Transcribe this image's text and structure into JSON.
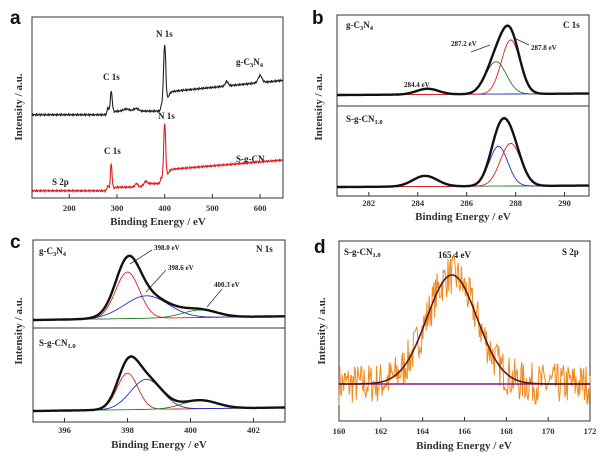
{
  "chart_data": [
    {
      "panel": "a",
      "type": "line",
      "xlabel": "Binding Energy / eV",
      "ylabel": "Intensity / a.u.",
      "xlim": [
        122,
        648
      ],
      "ylim": [
        0,
        100
      ],
      "xticks": [
        "200",
        "300",
        "400",
        "500",
        "600"
      ],
      "series": [
        {
          "name": "g-C3N4",
          "color": "#222222",
          "offset": 46,
          "steps": [
            {
              "x": 290,
              "h": 2
            },
            {
              "x": 405,
              "h": 11
            }
          ],
          "slope_after": {
            "x": 420,
            "h": 6
          },
          "peaks": [
            {
              "x": 281,
              "h": 4,
              "w": 1.5
            },
            {
              "x": 288,
              "h": 12,
              "w": 2.2
            },
            {
              "x": 320,
              "h": 1.2,
              "w": 6
            },
            {
              "x": 340,
              "h": 1.5,
              "w": 5
            },
            {
              "x": 394,
              "h": 3,
              "w": 2
            },
            {
              "x": 400,
              "h": 35,
              "w": 2.4
            },
            {
              "x": 530,
              "h": 2.5,
              "w": 3
            },
            {
              "x": 600,
              "h": 4,
              "w": 4
            }
          ]
        },
        {
          "name": "S-g-CN",
          "color": "#e02020",
          "offset": 4,
          "steps": [
            {
              "x": 290,
              "h": 2
            },
            {
              "x": 355,
              "h": 2
            },
            {
              "x": 405,
              "h": 8
            }
          ],
          "slope_after": {
            "x": 420,
            "h": 5
          },
          "peaks": [
            {
              "x": 281,
              "h": 3,
              "w": 1.5
            },
            {
              "x": 288,
              "h": 14,
              "w": 1.8
            },
            {
              "x": 341,
              "h": 2,
              "w": 3
            },
            {
              "x": 360,
              "h": 1.5,
              "w": 3
            },
            {
              "x": 393,
              "h": 3,
              "w": 1.8
            },
            {
              "x": 400,
              "h": 32,
              "w": 2.2
            }
          ]
        }
      ],
      "annotations": {
        "c1s_top": "C 1s",
        "n1s_top": "N 1s",
        "c1s_bottom": "C 1s",
        "n1s_bottom": "N 1s",
        "s2p": "S 2p",
        "red_label": "S-g-CN"
      },
      "sample_top": [
        "g-C",
        "3",
        "N",
        "4"
      ]
    },
    {
      "panel": "b",
      "type": "line",
      "region": "C 1s",
      "xlabel": "Binding Energy / eV",
      "ylabel": "Intensity / a.u.",
      "xlim": [
        280.7,
        291
      ],
      "xticks": [
        "282",
        "284",
        "286",
        "288",
        "290"
      ],
      "top": {
        "sample": [
          "g-C",
          "3",
          "N",
          "4"
        ],
        "components": [
          {
            "x": 284.4,
            "h": 0.08,
            "w": 0.45,
            "color": "#2030c0"
          },
          {
            "x": 287.2,
            "h": 0.45,
            "w": 0.42,
            "color": "#208020"
          },
          {
            "x": 287.8,
            "h": 0.75,
            "w": 0.38,
            "color": "#e02020"
          }
        ],
        "labels": [
          "284.4 eV",
          "287.2 eV",
          "287.8 eV"
        ]
      },
      "bottom": {
        "sample": [
          "S-g-CN",
          "1.0"
        ],
        "components": [
          {
            "x": 284.3,
            "h": 0.15,
            "w": 0.5,
            "color": "#208020"
          },
          {
            "x": 287.3,
            "h": 0.56,
            "w": 0.38,
            "color": "#2030c0"
          },
          {
            "x": 287.8,
            "h": 0.6,
            "w": 0.42,
            "color": "#e02020"
          }
        ]
      }
    },
    {
      "panel": "c",
      "type": "line",
      "region": "N 1s",
      "xlabel": "Binding Energy / eV",
      "ylabel": "Intensity / a.u.",
      "xlim": [
        395,
        403
      ],
      "xticks": [
        "396",
        "398",
        "400",
        "402"
      ],
      "top": {
        "sample": [
          "g-C",
          "3",
          "N",
          "4"
        ],
        "components": [
          {
            "x": 398.0,
            "h": 0.62,
            "w": 0.38,
            "color": "#e02020"
          },
          {
            "x": 398.6,
            "h": 0.3,
            "w": 0.7,
            "color": "#2030c0"
          },
          {
            "x": 400.3,
            "h": 0.1,
            "w": 0.55,
            "color": "#208020"
          }
        ],
        "labels": [
          "398.0 eV",
          "398.6 eV",
          "400.3 eV"
        ]
      },
      "bottom": {
        "sample": [
          "S-g-CN",
          "1.0"
        ],
        "components": [
          {
            "x": 398.0,
            "h": 0.52,
            "w": 0.33,
            "color": "#e02020"
          },
          {
            "x": 398.6,
            "h": 0.43,
            "w": 0.5,
            "color": "#2030c0"
          },
          {
            "x": 400.3,
            "h": 0.12,
            "w": 0.55,
            "color": "#208020"
          }
        ]
      }
    },
    {
      "panel": "d",
      "type": "line",
      "region": "S 2p",
      "xlabel": "Binding Energy / eV",
      "ylabel": "Intensity / a.u.",
      "xlim": [
        160,
        172
      ],
      "xticks": [
        "160",
        "162",
        "164",
        "166",
        "168",
        "170",
        "172"
      ],
      "sample": [
        "S-g-CN",
        "1.0"
      ],
      "peak": {
        "x": 165.4,
        "h": 1.0,
        "w": 1.2,
        "label": "165.4 eV"
      },
      "colors": {
        "raw": "#f08a20",
        "fit": "#5a1a1a",
        "baseline": "#8a1a7a"
      }
    }
  ]
}
